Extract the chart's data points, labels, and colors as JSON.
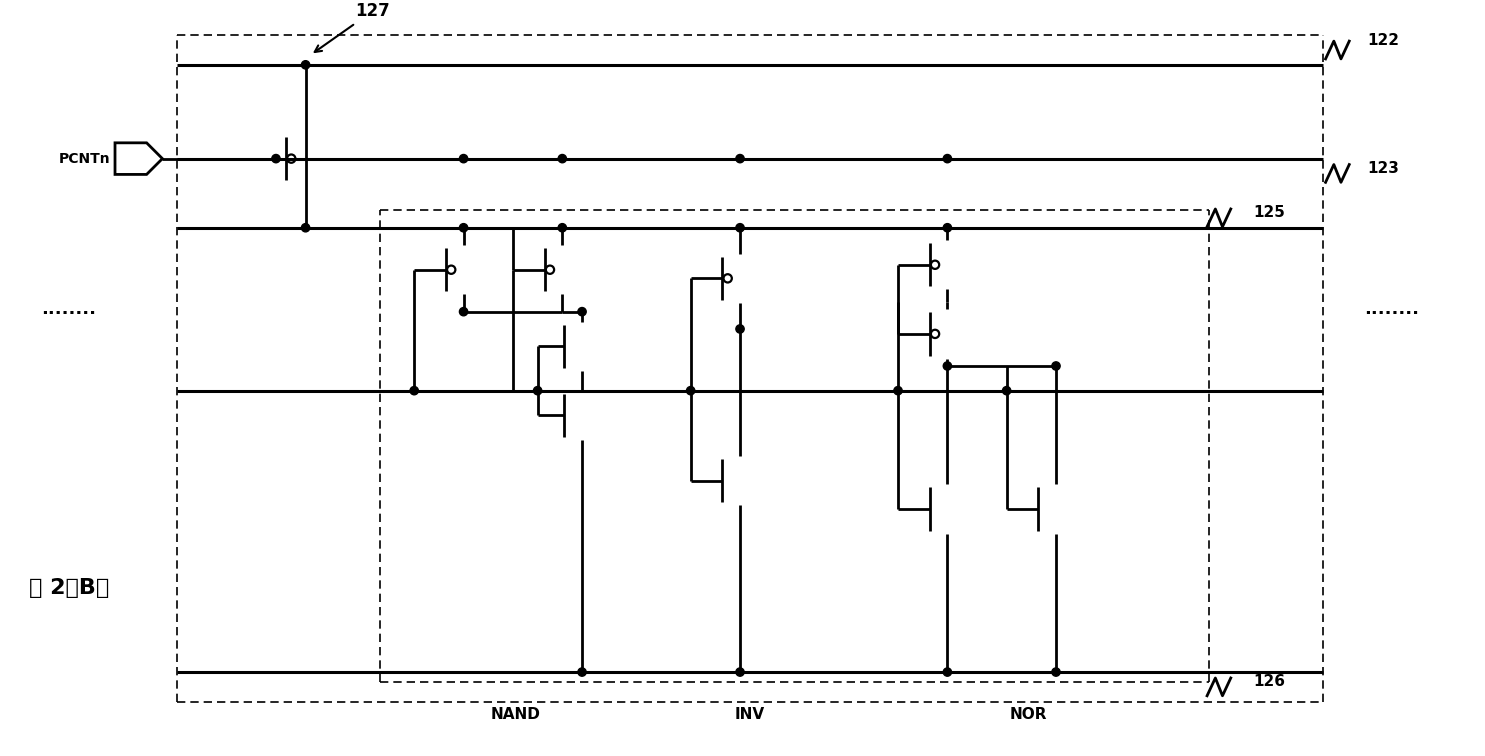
{
  "fig_label": "图 2（B）",
  "labels": {
    "pcntn": "PCNTn",
    "nand": "NAND",
    "inv": "INV",
    "nor": "NOR",
    "ref122": "122",
    "ref123": "123",
    "ref125": "125",
    "ref126": "126",
    "ref127": "127"
  },
  "figsize": [
    14.85,
    7.56
  ],
  "dpi": 100,
  "yVDD": 70.0,
  "yPCNT": 60.5,
  "yCTRL": 53.5,
  "yINPUT": 37.0,
  "yGND": 8.5,
  "yTD": 73.0,
  "yBD": 5.5,
  "xLD": 17.0,
  "xRD": 133.0,
  "xPTX": 30.0,
  "xNL": 38.5,
  "xNC1": 46.0,
  "xNC2": 56.0,
  "xNR": 64.0,
  "xIL": 66.0,
  "xIC": 74.0,
  "xIR": 84.0,
  "xOL": 86.5,
  "xOC1": 95.0,
  "xOC2": 106.0,
  "xOR": 120.0
}
